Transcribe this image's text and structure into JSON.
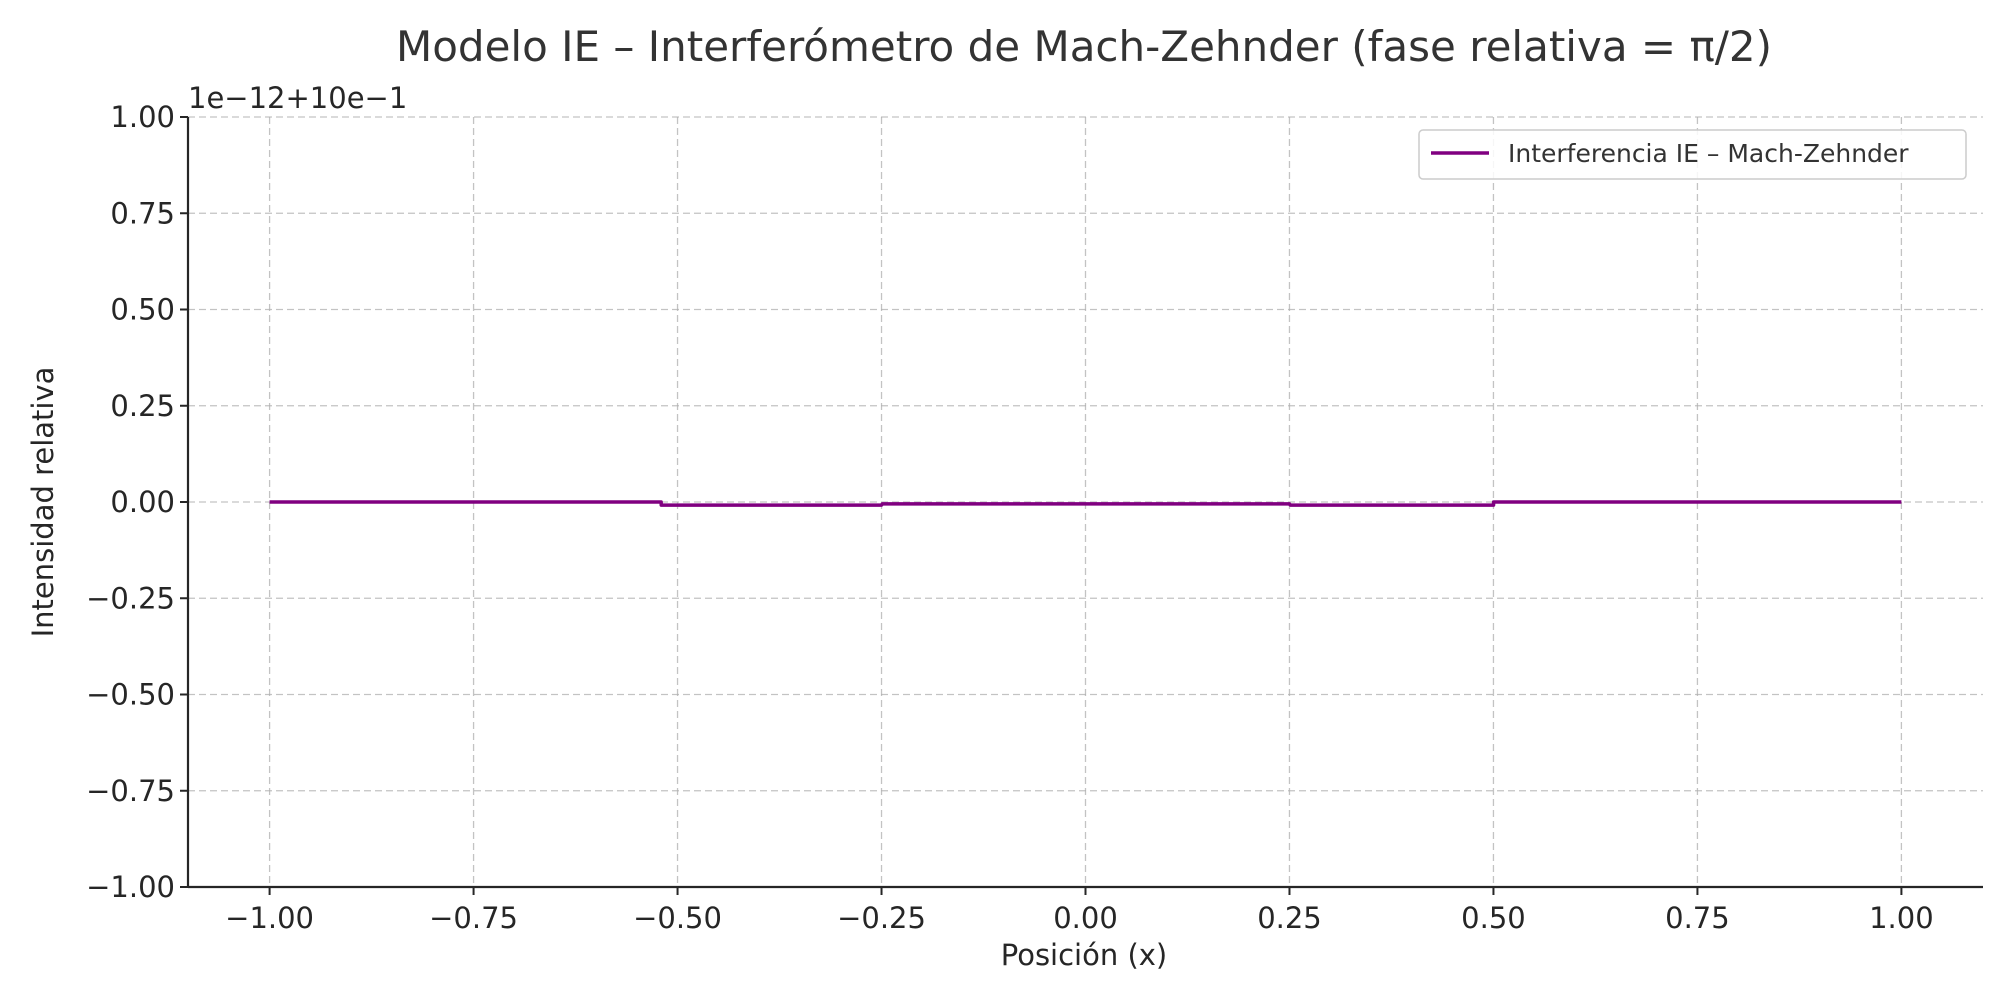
{
  "colors": {
    "series": "#800080",
    "grid": "#b0b0b0",
    "axis": "#262626",
    "background": "#ffffff"
  },
  "chart_data": {
    "type": "line",
    "title": "Modelo IE – Interferómetro de Mach-Zehnder (fase relativa = π/2)",
    "xlabel": "Posición (x)",
    "ylabel": "Intensidad relativa",
    "y_offset_text": "1e−12+10e−1",
    "xlim": [
      -1.1,
      1.1
    ],
    "ylim": [
      -1.0,
      1.0
    ],
    "x_ticks": [
      -1.0,
      -0.75,
      -0.5,
      -0.25,
      0.0,
      0.25,
      0.5,
      0.75,
      1.0
    ],
    "x_tick_labels": [
      "−1.00",
      "−0.75",
      "−0.50",
      "−0.25",
      "0.00",
      "0.25",
      "0.50",
      "0.75",
      "1.00"
    ],
    "y_ticks": [
      1.0,
      0.75,
      0.5,
      0.25,
      0.0,
      -0.25,
      -0.5,
      -0.75,
      -1.0
    ],
    "y_tick_labels": [
      "1.00",
      "0.75",
      "0.50",
      "0.25",
      "0.00",
      "−0.25",
      "−0.50",
      "−0.75",
      "−1.00"
    ],
    "grid": true,
    "legend_position": "top-right",
    "series": [
      {
        "name": "Interferencia IE – Mach-Zehnder",
        "color": "#800080",
        "x": [
          -1.0,
          -0.75,
          -0.5201,
          -0.52,
          -0.25,
          -0.249,
          0.0,
          0.25,
          0.251,
          0.5001,
          0.5002,
          0.75,
          1.0
        ],
        "y": [
          0.0,
          0.0,
          0.0,
          -0.008,
          -0.008,
          -0.005,
          -0.005,
          -0.005,
          -0.008,
          -0.008,
          0.0,
          0.0,
          0.0
        ]
      }
    ]
  }
}
